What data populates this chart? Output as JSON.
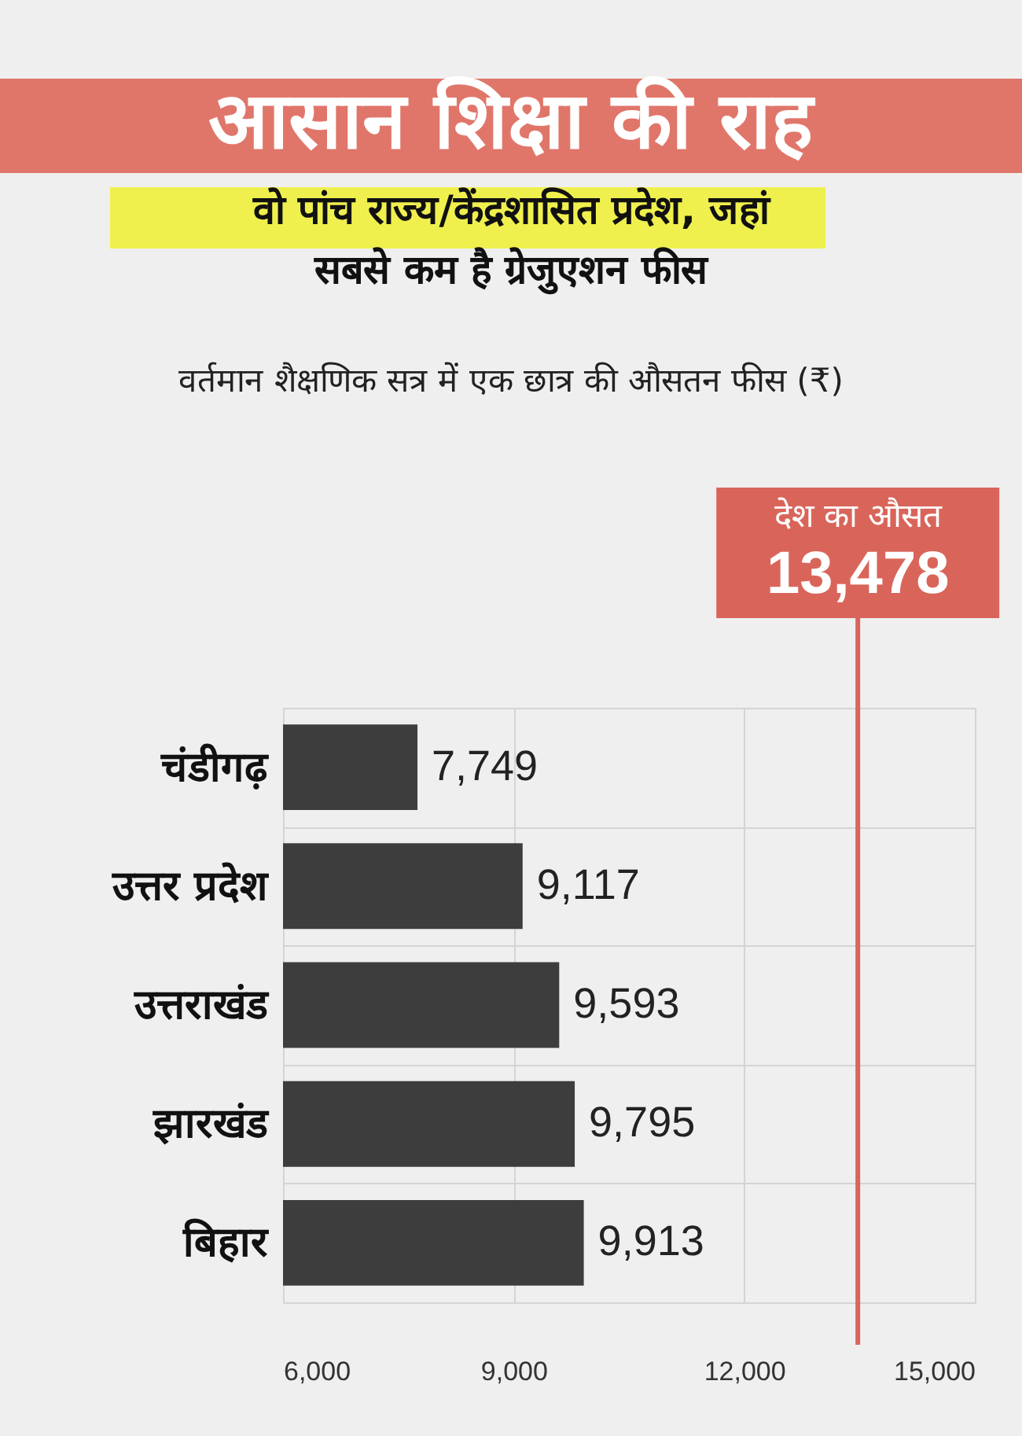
{
  "chart_data": {
    "type": "bar",
    "orientation": "horizontal",
    "title": "आसान शिक्षा की राह",
    "subtitle": "वो पांच राज्य/केंद्रशासित प्रदेश, जहां सबसे कम है ग्रेजुएशन फीस",
    "annotations": [
      "वर्तमान शैक्षणिक सत्र में एक छात्र की औसतन फीस (₹)",
      "देश का औसत"
    ],
    "categories": [
      "चंडीगढ़",
      "उत्तर प्रदेश",
      "उत्तराखंड",
      "झारखंड",
      "बिहार"
    ],
    "values": [
      7749,
      9117,
      9593,
      9795,
      9913
    ],
    "value_labels": [
      "7,749",
      "9,117",
      "9,593",
      "9,795",
      "9,913"
    ],
    "color": "#3d3d3d",
    "xlim": [
      6000,
      15000
    ],
    "xticks": [
      {
        "value": 6000,
        "label": "6,000"
      },
      {
        "value": 9000,
        "label": "9,000"
      },
      {
        "value": 12000,
        "label": "12,000"
      },
      {
        "value": 15000,
        "label": "15,000"
      }
    ],
    "grid": true,
    "ref_lines": [
      {
        "axis": "x",
        "value": 13478,
        "label": "13,478",
        "color": "#d9655a"
      }
    ]
  }
}
